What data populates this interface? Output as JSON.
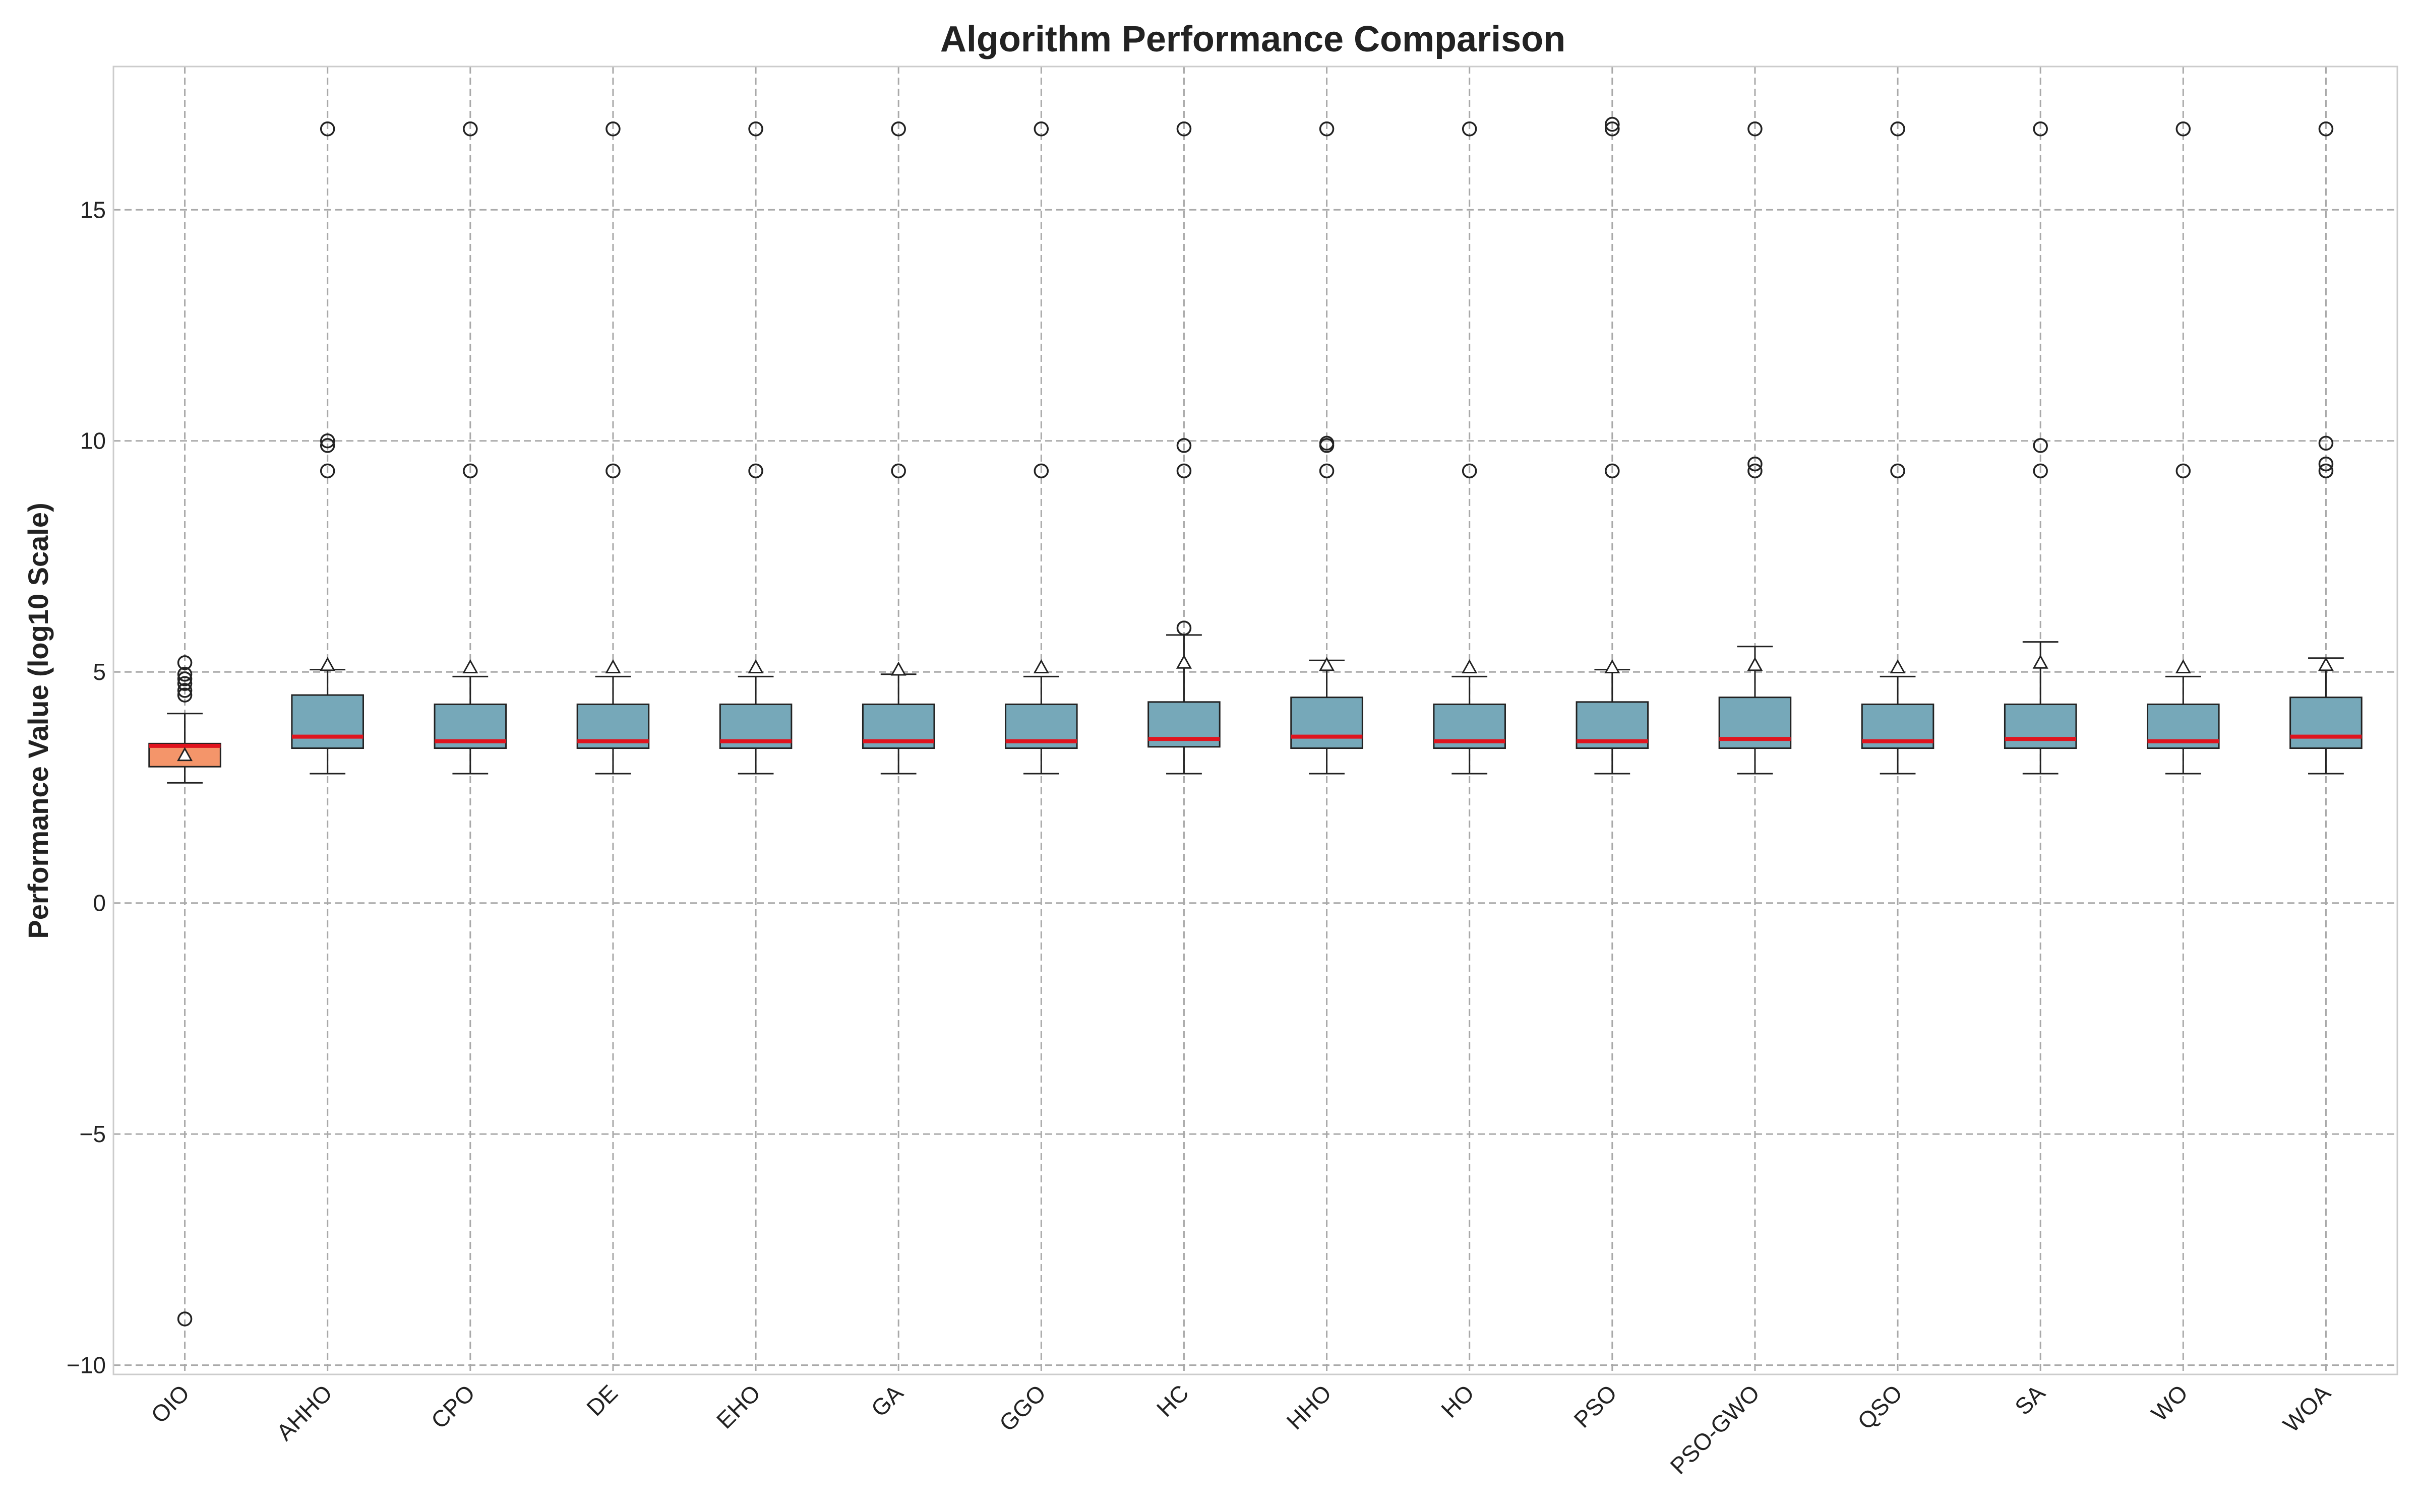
{
  "chart_data": {
    "type": "box",
    "title": "Algorithm Performance Comparison",
    "xlabel": "",
    "ylabel": "Performance Value (log10 Scale)",
    "ylim": [
      -10.2,
      18.1
    ],
    "yticks": [
      -10,
      -5,
      0,
      5,
      10,
      15
    ],
    "ytick_labels": [
      "−10",
      "−5",
      "0",
      "5",
      "10",
      "15"
    ],
    "grid": true,
    "colors": {
      "highlight": "#f4956a",
      "box": "#76a8b9",
      "median": "#e0141e",
      "edge": "#222222"
    },
    "categories": [
      "OIO",
      "AHHO",
      "CPO",
      "DE",
      "EHO",
      "GA",
      "GGO",
      "HC",
      "HHO",
      "HO",
      "PSO",
      "PSO-GWO",
      "QSO",
      "SA",
      "WO",
      "WOA"
    ],
    "boxes": [
      {
        "name": "OIO",
        "highlight": true,
        "whisker_low": 2.6,
        "q1": 2.95,
        "median": 3.4,
        "q3": 3.45,
        "whisker_high": 4.1,
        "mean": 3.2,
        "outliers": [
          5.2,
          4.95,
          4.85,
          4.75,
          4.6,
          4.5,
          -9.0
        ]
      },
      {
        "name": "AHHO",
        "whisker_low": 2.8,
        "q1": 3.35,
        "median": 3.6,
        "q3": 4.5,
        "whisker_high": 5.05,
        "mean": 5.15,
        "outliers": [
          16.75,
          10.0,
          9.9,
          9.35
        ]
      },
      {
        "name": "CPO",
        "whisker_low": 2.8,
        "q1": 3.35,
        "median": 3.5,
        "q3": 4.3,
        "whisker_high": 4.9,
        "mean": 5.1,
        "outliers": [
          16.75,
          9.35
        ]
      },
      {
        "name": "DE",
        "whisker_low": 2.8,
        "q1": 3.35,
        "median": 3.5,
        "q3": 4.3,
        "whisker_high": 4.9,
        "mean": 5.1,
        "outliers": [
          16.75,
          9.35
        ]
      },
      {
        "name": "EHO",
        "whisker_low": 2.8,
        "q1": 3.35,
        "median": 3.5,
        "q3": 4.3,
        "whisker_high": 4.9,
        "mean": 5.1,
        "outliers": [
          16.75,
          9.35
        ]
      },
      {
        "name": "GA",
        "whisker_low": 2.8,
        "q1": 3.35,
        "median": 3.5,
        "q3": 4.3,
        "whisker_high": 4.95,
        "mean": 5.05,
        "outliers": [
          16.75,
          9.35
        ]
      },
      {
        "name": "GGO",
        "whisker_low": 2.8,
        "q1": 3.35,
        "median": 3.5,
        "q3": 4.3,
        "whisker_high": 4.9,
        "mean": 5.1,
        "outliers": [
          16.75,
          9.35
        ]
      },
      {
        "name": "HC",
        "whisker_low": 2.8,
        "q1": 3.38,
        "median": 3.55,
        "q3": 4.35,
        "whisker_high": 5.8,
        "mean": 5.2,
        "outliers": [
          16.75,
          9.9,
          9.35,
          5.95
        ]
      },
      {
        "name": "HHO",
        "whisker_low": 2.8,
        "q1": 3.35,
        "median": 3.6,
        "q3": 4.45,
        "whisker_high": 5.25,
        "mean": 5.15,
        "outliers": [
          16.75,
          9.95,
          9.9,
          9.35
        ]
      },
      {
        "name": "HO",
        "whisker_low": 2.8,
        "q1": 3.35,
        "median": 3.5,
        "q3": 4.3,
        "whisker_high": 4.9,
        "mean": 5.1,
        "outliers": [
          16.75,
          9.35
        ]
      },
      {
        "name": "PSO",
        "whisker_low": 2.8,
        "q1": 3.35,
        "median": 3.5,
        "q3": 4.35,
        "whisker_high": 5.05,
        "mean": 5.1,
        "outliers": [
          16.85,
          16.75,
          9.35
        ]
      },
      {
        "name": "PSO-GWO",
        "whisker_low": 2.8,
        "q1": 3.35,
        "median": 3.55,
        "q3": 4.45,
        "whisker_high": 5.55,
        "mean": 5.15,
        "outliers": [
          16.75,
          9.5,
          9.35
        ]
      },
      {
        "name": "QSO",
        "whisker_low": 2.8,
        "q1": 3.35,
        "median": 3.5,
        "q3": 4.3,
        "whisker_high": 4.9,
        "mean": 5.1,
        "outliers": [
          16.75,
          9.35
        ]
      },
      {
        "name": "SA",
        "whisker_low": 2.8,
        "q1": 3.35,
        "median": 3.55,
        "q3": 4.3,
        "whisker_high": 5.65,
        "mean": 5.2,
        "outliers": [
          16.75,
          9.9,
          9.35
        ]
      },
      {
        "name": "WO",
        "whisker_low": 2.8,
        "q1": 3.35,
        "median": 3.5,
        "q3": 4.3,
        "whisker_high": 4.9,
        "mean": 5.1,
        "outliers": [
          16.75,
          9.35
        ]
      },
      {
        "name": "WOA",
        "whisker_low": 2.8,
        "q1": 3.35,
        "median": 3.6,
        "q3": 4.45,
        "whisker_high": 5.3,
        "mean": 5.15,
        "outliers": [
          16.75,
          9.95,
          9.5,
          9.35
        ]
      }
    ]
  }
}
